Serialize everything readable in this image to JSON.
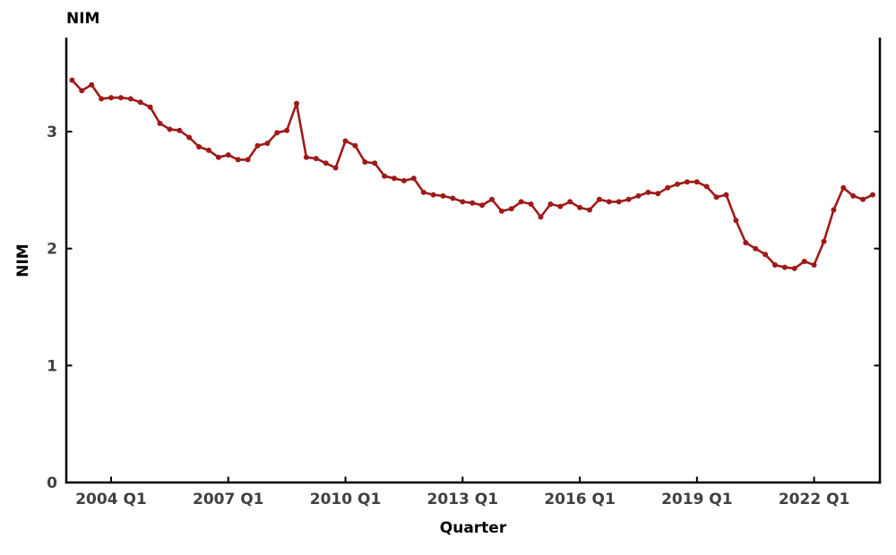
{
  "chart_data": {
    "type": "line",
    "title": "NIM",
    "xlabel": "Quarter",
    "ylabel": "NIM",
    "series_name": "NIM",
    "marker": "circle",
    "grid": false,
    "legend_position": "none",
    "line_color": "#9e1a1a",
    "axis_color": "#000000",
    "tick_label_color": "#404040",
    "ylim": [
      0,
      3.8
    ],
    "y_ticks": [
      "0",
      "1",
      "2",
      "3"
    ],
    "x_tick_labels": [
      "2004 Q1",
      "2007 Q1",
      "2010 Q1",
      "2013 Q1",
      "2016 Q1",
      "2019 Q1",
      "2022 Q1"
    ],
    "x": [
      "2003 Q1",
      "2003 Q2",
      "2003 Q3",
      "2003 Q4",
      "2004 Q1",
      "2004 Q2",
      "2004 Q3",
      "2004 Q4",
      "2005 Q1",
      "2005 Q2",
      "2005 Q3",
      "2005 Q4",
      "2006 Q1",
      "2006 Q2",
      "2006 Q3",
      "2006 Q4",
      "2007 Q1",
      "2007 Q2",
      "2007 Q3",
      "2007 Q4",
      "2008 Q1",
      "2008 Q2",
      "2008 Q3",
      "2008 Q4",
      "2009 Q1",
      "2009 Q2",
      "2009 Q3",
      "2009 Q4",
      "2010 Q1",
      "2010 Q2",
      "2010 Q3",
      "2010 Q4",
      "2011 Q1",
      "2011 Q2",
      "2011 Q3",
      "2011 Q4",
      "2012 Q1",
      "2012 Q2",
      "2012 Q3",
      "2012 Q4",
      "2013 Q1",
      "2013 Q2",
      "2013 Q3",
      "2013 Q4",
      "2014 Q1",
      "2014 Q2",
      "2014 Q3",
      "2014 Q4",
      "2015 Q1",
      "2015 Q2",
      "2015 Q3",
      "2015 Q4",
      "2016 Q1",
      "2016 Q2",
      "2016 Q3",
      "2016 Q4",
      "2017 Q1",
      "2017 Q2",
      "2017 Q3",
      "2017 Q4",
      "2018 Q1",
      "2018 Q2",
      "2018 Q3",
      "2018 Q4",
      "2019 Q1",
      "2019 Q2",
      "2019 Q3",
      "2019 Q4",
      "2020 Q1",
      "2020 Q2",
      "2020 Q3",
      "2020 Q4",
      "2021 Q1",
      "2021 Q2",
      "2021 Q3",
      "2021 Q4",
      "2022 Q1",
      "2022 Q2",
      "2022 Q3",
      "2022 Q4",
      "2023 Q1",
      "2023 Q2",
      "2023 Q3"
    ],
    "values": [
      3.44,
      3.35,
      3.4,
      3.28,
      3.29,
      3.29,
      3.28,
      3.25,
      3.21,
      3.07,
      3.02,
      3.01,
      2.95,
      2.87,
      2.84,
      2.78,
      2.8,
      2.76,
      2.76,
      2.88,
      2.9,
      2.99,
      3.01,
      3.24,
      2.78,
      2.77,
      2.73,
      2.69,
      2.92,
      2.88,
      2.74,
      2.73,
      2.62,
      2.6,
      2.58,
      2.6,
      2.48,
      2.46,
      2.45,
      2.43,
      2.4,
      2.39,
      2.37,
      2.42,
      2.32,
      2.34,
      2.4,
      2.38,
      2.27,
      2.38,
      2.36,
      2.4,
      2.35,
      2.33,
      2.42,
      2.4,
      2.4,
      2.42,
      2.45,
      2.48,
      2.47,
      2.52,
      2.55,
      2.57,
      2.57,
      2.53,
      2.44,
      2.46,
      2.24,
      2.05,
      2.0,
      1.95,
      1.86,
      1.84,
      1.83,
      1.89,
      1.86,
      2.06,
      2.33,
      2.52,
      2.45,
      2.42,
      2.46
    ]
  }
}
